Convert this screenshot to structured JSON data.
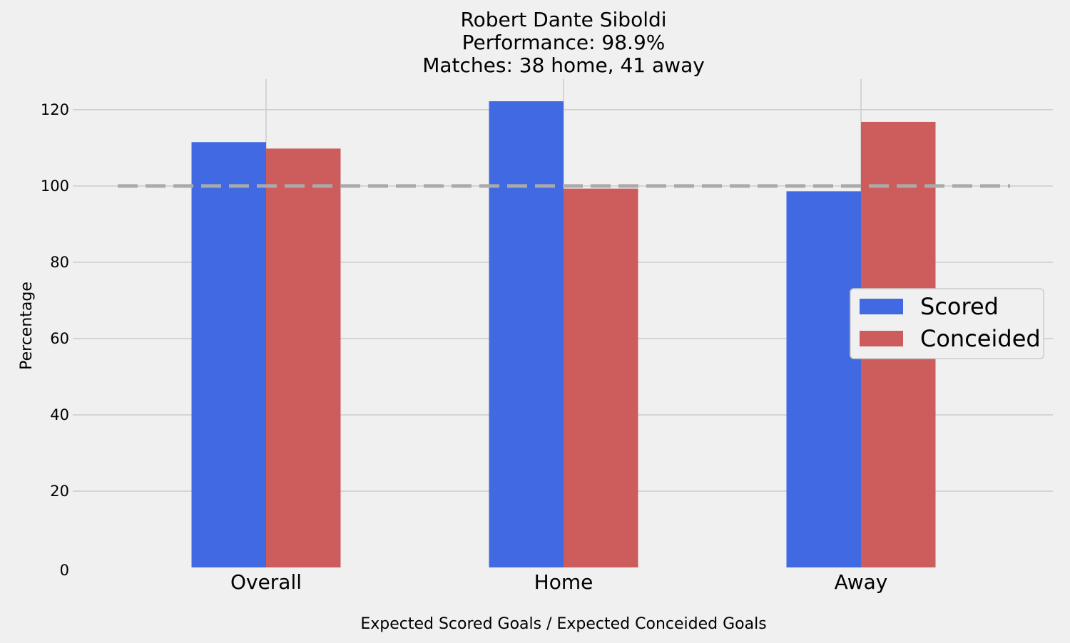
{
  "chart_data": {
    "type": "bar",
    "title_lines": [
      "Robert Dante Siboldi",
      "Performance: 98.9%",
      "Matches: 38 home, 41 away"
    ],
    "categories": [
      "Overall",
      "Home",
      "Away"
    ],
    "series": [
      {
        "name": "Scored",
        "color": "#4169e1",
        "values": [
          111.5,
          122.2,
          98.6
        ]
      },
      {
        "name": "Conceided",
        "color": "#cd5c5c",
        "values": [
          109.8,
          99.3,
          116.8
        ]
      }
    ],
    "xlabel": "Expected Scored Goals / Expected Conceided Goals",
    "ylabel": "Percentage",
    "ylim": [
      0,
      128
    ],
    "yticks": [
      0,
      20,
      40,
      60,
      80,
      100,
      120
    ],
    "reference_line": {
      "value": 100,
      "style": "dashed",
      "color": "#aaaaaa"
    },
    "grid": true,
    "legend_position": "center-right",
    "background": "#f0f0f0",
    "grid_color": "#cbcbcb"
  }
}
